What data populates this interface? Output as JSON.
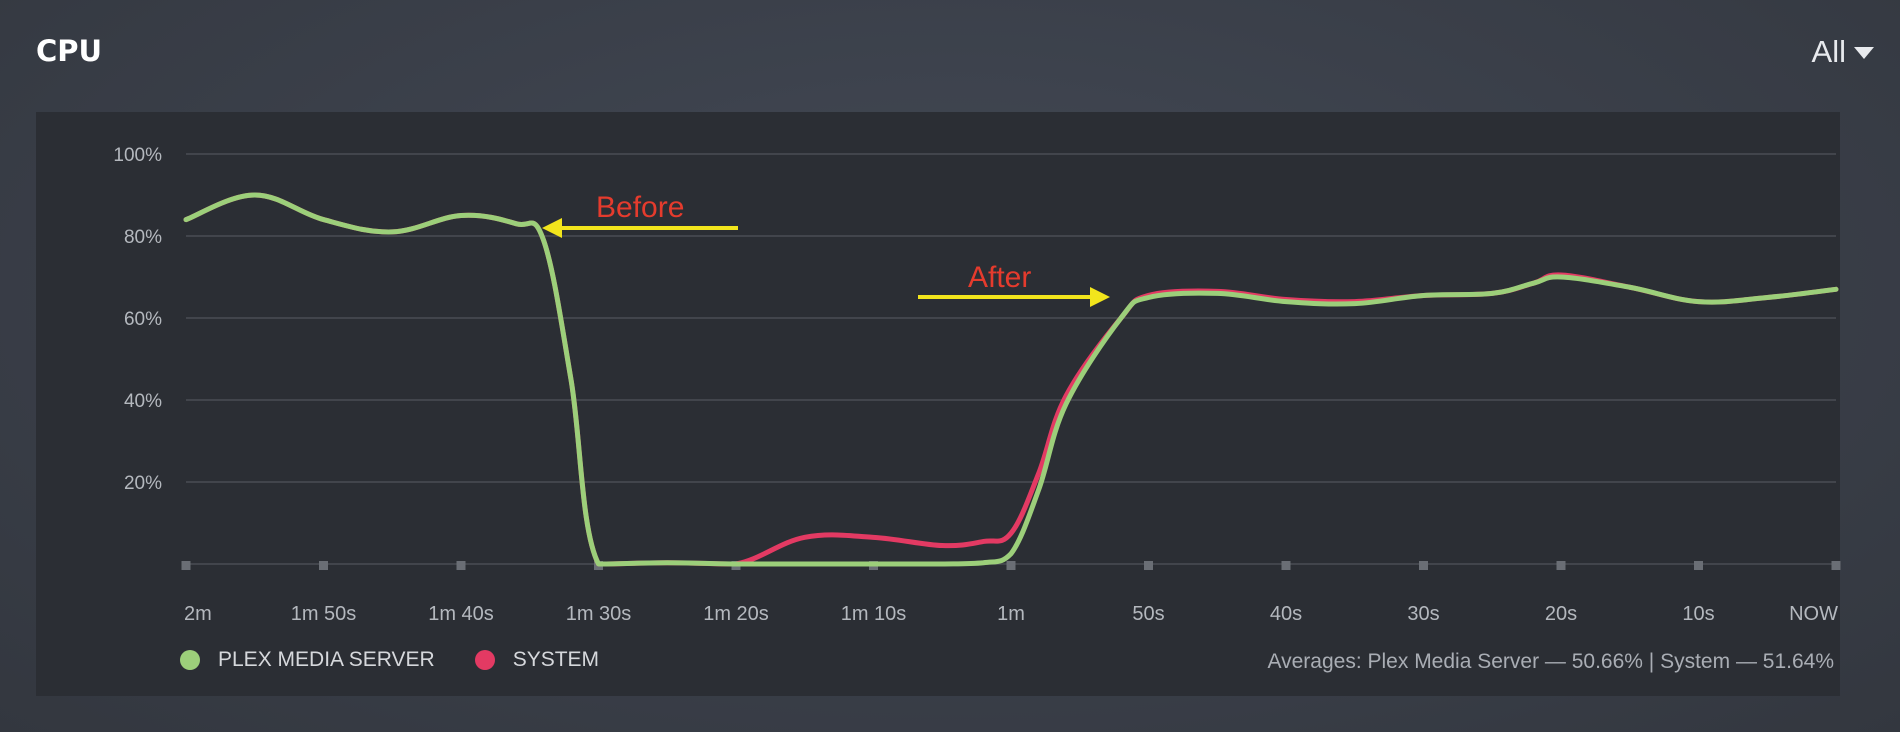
{
  "header": {
    "title": "CPU",
    "filter_label": "All"
  },
  "legend": {
    "items": [
      {
        "label": "PLEX MEDIA SERVER",
        "color": "#9ccf7a"
      },
      {
        "label": "SYSTEM",
        "color": "#e33a63"
      }
    ]
  },
  "averages_text": "Averages: Plex Media Server — 50.66% | System — 51.64%",
  "annotations": {
    "before": "Before",
    "after": "After"
  },
  "colors": {
    "annotation_text": "#e53b2d",
    "annotation_arrow": "#f2e51c",
    "grid": "#4a4d54",
    "tick_label": "#b4b8be"
  },
  "chart_data": {
    "type": "line",
    "title": "CPU",
    "xlabel": "",
    "ylabel": "",
    "ylim": [
      0,
      100
    ],
    "y_ticks": [
      20,
      40,
      60,
      80,
      100
    ],
    "y_tick_labels": [
      "20%",
      "40%",
      "60%",
      "80%",
      "100%"
    ],
    "x_range": [
      120,
      0
    ],
    "x_ticks": [
      120,
      110,
      100,
      90,
      80,
      70,
      60,
      50,
      40,
      30,
      20,
      10,
      0
    ],
    "x_tick_labels": [
      "2m",
      "1m 50s",
      "1m 40s",
      "1m 30s",
      "1m 20s",
      "1m 10s",
      "1m",
      "50s",
      "40s",
      "30s",
      "20s",
      "10s",
      "NOW"
    ],
    "grid": true,
    "legend_position": "bottom-left",
    "series": [
      {
        "name": "PLEX MEDIA SERVER",
        "color": "#9ccf7a",
        "x": [
          120,
          115,
          110,
          105,
          100,
          96,
          94,
          92,
          90,
          85,
          80,
          75,
          70,
          65,
          62,
          60,
          58,
          56,
          52,
          50,
          45,
          40,
          35,
          30,
          25,
          22,
          20,
          15,
          10,
          5,
          0
        ],
        "y": [
          84,
          90,
          84,
          81,
          85,
          83,
          79,
          45,
          0,
          0.3,
          0,
          0,
          0,
          0,
          0.3,
          2.5,
          18,
          39,
          60,
          65,
          66,
          64,
          63.5,
          65.5,
          66,
          68.5,
          70,
          67.5,
          64,
          65,
          67
        ]
      },
      {
        "name": "SYSTEM",
        "color": "#e33a63",
        "x": [
          120,
          115,
          110,
          105,
          100,
          96,
          94,
          92,
          90,
          85,
          80,
          75,
          70,
          65,
          62,
          60,
          58,
          56,
          52,
          50,
          45,
          40,
          35,
          30,
          25,
          22,
          20,
          15,
          10,
          5,
          0
        ],
        "y": [
          84,
          90,
          84,
          81,
          85,
          83,
          79,
          45,
          0,
          0.3,
          0,
          6.5,
          6.5,
          4.5,
          5.5,
          7.5,
          22,
          41,
          60,
          65.5,
          66.5,
          64.5,
          64,
          65.5,
          66,
          68.5,
          70.5,
          67.5,
          64,
          65,
          67
        ]
      }
    ]
  }
}
